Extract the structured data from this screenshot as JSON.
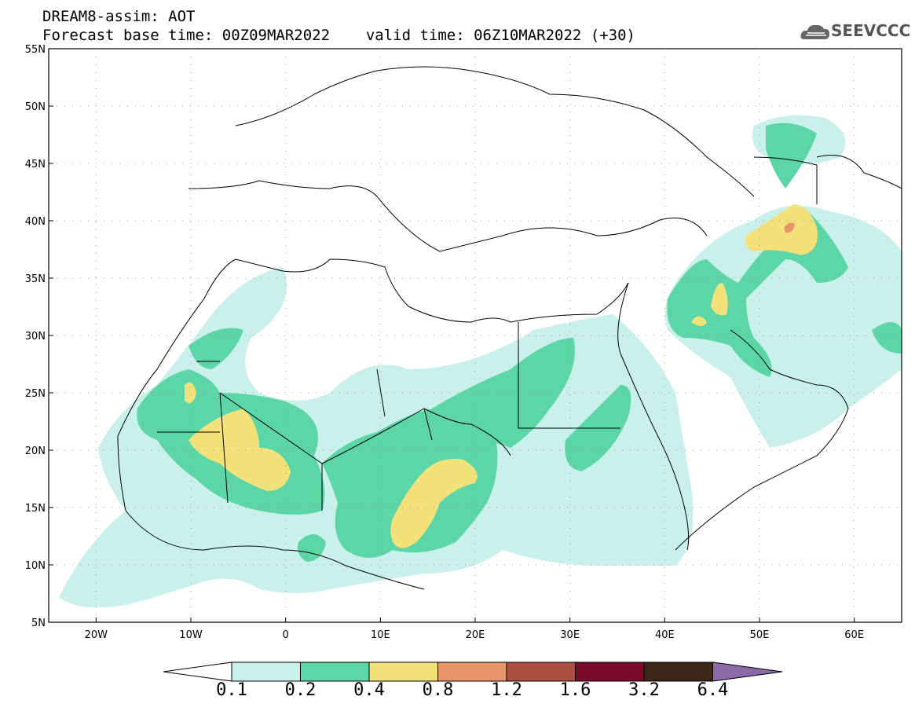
{
  "header": {
    "line1": "DREAM8-assim: AOT",
    "line2_base": "Forecast base time: 00Z09MAR2022",
    "line2_valid": "valid time: 06Z10MAR2022 (+30)"
  },
  "logo": {
    "text": "SEEVCCC",
    "icon": "cloud-icon"
  },
  "map": {
    "lat_ticks": [
      "55N",
      "50N",
      "45N",
      "40N",
      "35N",
      "30N",
      "25N",
      "20N",
      "15N",
      "10N",
      "5N"
    ],
    "lon_ticks": [
      "20W",
      "10W",
      "0",
      "10E",
      "20E",
      "30E",
      "40E",
      "50E",
      "60E"
    ],
    "lon_range": [
      -25,
      65
    ],
    "lat_range": [
      5,
      55
    ]
  },
  "colorbar": {
    "labels": [
      "0.1",
      "0.2",
      "0.4",
      "0.8",
      "1.2",
      "1.6",
      "3.2",
      "6.4"
    ],
    "colors": [
      "#ffffff",
      "#c9f0ea",
      "#5dd6a7",
      "#f3e27a",
      "#e8936a",
      "#ac4f43",
      "#7a0a2a",
      "#3b2516",
      "#8b6aa8"
    ]
  }
}
